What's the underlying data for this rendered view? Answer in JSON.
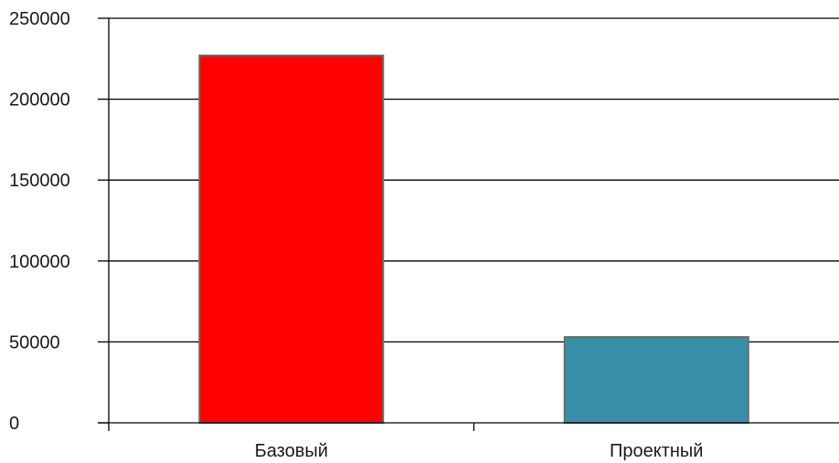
{
  "chart_data": {
    "type": "bar",
    "categories": [
      "Базовый",
      "Проектный"
    ],
    "values": [
      227000,
      53000
    ],
    "colors": [
      "#ff0000",
      "#3a8fa8"
    ],
    "ylim": [
      0,
      250000
    ],
    "yticks": [
      0,
      50000,
      100000,
      150000,
      200000,
      250000
    ],
    "ytick_labels": [
      "0",
      "50000",
      "100000",
      "150000",
      "200000",
      "250000"
    ],
    "grid": true,
    "legend": "none"
  }
}
